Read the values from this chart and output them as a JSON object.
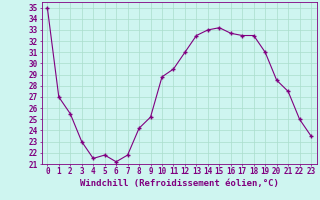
{
  "x": [
    0,
    1,
    2,
    3,
    4,
    5,
    6,
    7,
    8,
    9,
    10,
    11,
    12,
    13,
    14,
    15,
    16,
    17,
    18,
    19,
    20,
    21,
    22,
    23
  ],
  "y": [
    35,
    27,
    25.5,
    23,
    21.5,
    21.8,
    21.2,
    21.8,
    24.2,
    25.2,
    28.8,
    29.5,
    31,
    32.5,
    33,
    33.2,
    32.7,
    32.5,
    32.5,
    31,
    28.5,
    27.5,
    25,
    23.5
  ],
  "xlim": [
    -0.5,
    23.5
  ],
  "ylim": [
    21,
    35.5
  ],
  "yticks": [
    21,
    22,
    23,
    24,
    25,
    26,
    27,
    28,
    29,
    30,
    31,
    32,
    33,
    34,
    35
  ],
  "xticks": [
    0,
    1,
    2,
    3,
    4,
    5,
    6,
    7,
    8,
    9,
    10,
    11,
    12,
    13,
    14,
    15,
    16,
    17,
    18,
    19,
    20,
    21,
    22,
    23
  ],
  "line_color": "#800080",
  "marker": "+",
  "marker_size": 3,
  "line_width": 0.8,
  "bg_color": "#cef5f0",
  "grid_color": "#aaddcc",
  "xlabel": "Windchill (Refroidissement éolien,°C)",
  "xlabel_fontsize": 6.5,
  "tick_fontsize": 5.5,
  "tick_color": "#800080",
  "label_color": "#800080"
}
